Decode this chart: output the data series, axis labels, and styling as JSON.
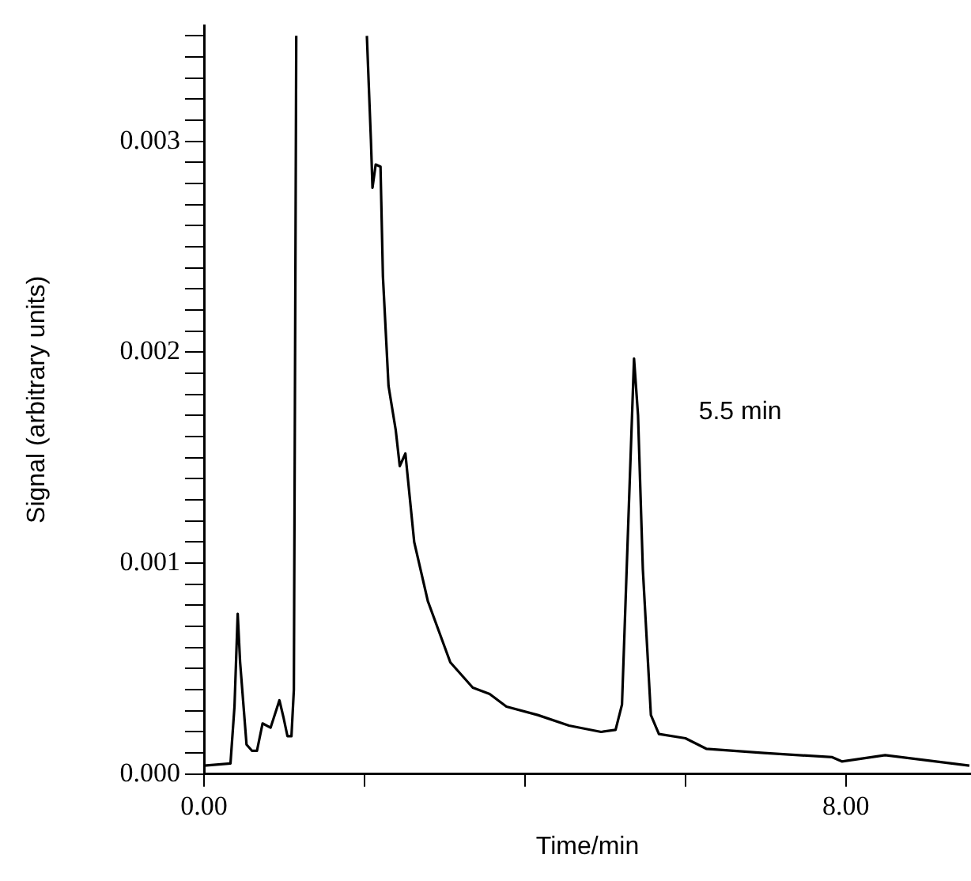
{
  "chart_data": {
    "type": "line",
    "xlabel": "Time/min",
    "ylabel": "Signal (arbitrary units)",
    "annotations": [
      "5.5 min"
    ],
    "xlim": [
      0,
      9.56
    ],
    "ylim": [
      0,
      0.00355
    ],
    "xticks": [
      {
        "value": 0,
        "label": "0.00"
      },
      {
        "value": 2,
        "label": null
      },
      {
        "value": 4,
        "label": null
      },
      {
        "value": 6,
        "label": null
      },
      {
        "value": 8,
        "label": "8.00"
      }
    ],
    "yticks": [
      {
        "value": 0,
        "label": "0.000"
      },
      {
        "value": 0.0001,
        "label": null
      },
      {
        "value": 0.0002,
        "label": null
      },
      {
        "value": 0.0003,
        "label": null
      },
      {
        "value": 0.0004,
        "label": null
      },
      {
        "value": 0.0005,
        "label": null
      },
      {
        "value": 0.0006,
        "label": null
      },
      {
        "value": 0.0007,
        "label": null
      },
      {
        "value": 0.0008,
        "label": null
      },
      {
        "value": 0.0009,
        "label": null
      },
      {
        "value": 0.001,
        "label": "0.001"
      },
      {
        "value": 0.0011,
        "label": null
      },
      {
        "value": 0.0012,
        "label": null
      },
      {
        "value": 0.0013,
        "label": null
      },
      {
        "value": 0.0014,
        "label": null
      },
      {
        "value": 0.0015,
        "label": null
      },
      {
        "value": 0.0016,
        "label": null
      },
      {
        "value": 0.0017,
        "label": null
      },
      {
        "value": 0.0018,
        "label": null
      },
      {
        "value": 0.0019,
        "label": null
      },
      {
        "value": 0.002,
        "label": "0.002"
      },
      {
        "value": 0.0021,
        "label": null
      },
      {
        "value": 0.0022,
        "label": null
      },
      {
        "value": 0.0023,
        "label": null
      },
      {
        "value": 0.0024,
        "label": null
      },
      {
        "value": 0.0025,
        "label": null
      },
      {
        "value": 0.0026,
        "label": null
      },
      {
        "value": 0.0027,
        "label": null
      },
      {
        "value": 0.0028,
        "label": null
      },
      {
        "value": 0.0029,
        "label": null
      },
      {
        "value": 0.003,
        "label": "0.003"
      },
      {
        "value": 0.0031,
        "label": null
      },
      {
        "value": 0.0032,
        "label": null
      },
      {
        "value": 0.0033,
        "label": null
      },
      {
        "value": 0.0034,
        "label": null
      },
      {
        "value": 0.0035,
        "label": null
      }
    ],
    "grid": false,
    "legend": false,
    "marker": "none",
    "series": [
      {
        "color": "#000000",
        "x": [
          0,
          0.33,
          0.38,
          0.42,
          0.45,
          0.53,
          0.6,
          0.66,
          0.73,
          0.83,
          0.94,
          0.99,
          1.04,
          1.09,
          1.12,
          1.15,
          1.6,
          2.03,
          2.08,
          2.1,
          2.14,
          2.2,
          2.23,
          2.3,
          2.39,
          2.44,
          2.51,
          2.62,
          2.79,
          3.07,
          3.35,
          3.56,
          3.77,
          4.16,
          4.55,
          4.95,
          5.13,
          5.21,
          5.29,
          5.36,
          5.41,
          5.47,
          5.57,
          5.67,
          6.0,
          6.26,
          6.98,
          7.83,
          7.95,
          8.49,
          9.54
        ],
        "values": [
          4e-05,
          5e-05,
          0.00032,
          0.00076,
          0.00053,
          0.00014,
          0.00011,
          0.00011,
          0.00024,
          0.00022,
          0.00035,
          0.00027,
          0.00018,
          0.00018,
          0.0004,
          0.0035,
          null,
          0.0035,
          0.00301,
          0.00278,
          0.00289,
          0.00288,
          0.00236,
          0.00184,
          0.00163,
          0.00146,
          0.00152,
          0.0011,
          0.00082,
          0.00053,
          0.00041,
          0.00038,
          0.00032,
          0.00028,
          0.00023,
          0.0002,
          0.00021,
          0.00033,
          0.00121,
          0.00197,
          0.0017,
          0.00097,
          0.00028,
          0.00019,
          0.00017,
          0.00012,
          0.0001,
          8e-05,
          6e-05,
          9e-05,
          4e-05
        ]
      }
    ]
  }
}
